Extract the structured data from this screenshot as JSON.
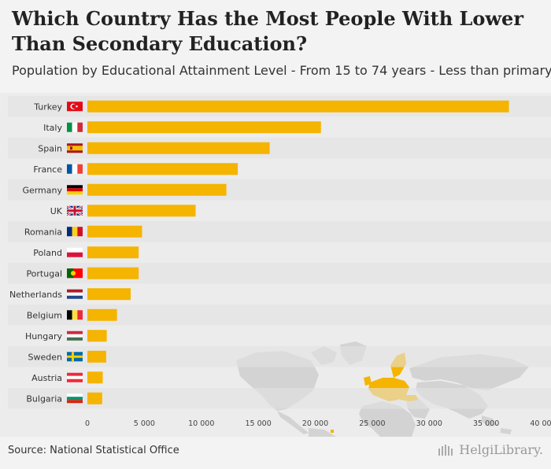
{
  "header": {
    "title": "Which Country Has the Most People With Lower Than Secondary Education?",
    "subtitle": "Population by Educational Attainment Level - From 15 to 74 years - Less than primary, primary and lower secondary education"
  },
  "footer": {
    "source": "Source: National Statistical Office",
    "brand": "HelgiLibrary."
  },
  "colors": {
    "bar": "#f5b400",
    "map_land": "#d3d3d3",
    "map_highlight": "#f5b400",
    "row_band": "#e2e2e2"
  },
  "chart_data": {
    "type": "bar",
    "orientation": "horizontal",
    "title": "Which Country Has the Most People With Lower Than Secondary Education?",
    "categories": [
      "Turkey",
      "Italy",
      "Spain",
      "France",
      "Germany",
      "UK",
      "Romania",
      "Poland",
      "Portugal",
      "Netherlands",
      "Belgium",
      "Hungary",
      "Sweden",
      "Austria",
      "Bulgaria"
    ],
    "flags": [
      "turkey-flag",
      "italy-flag",
      "spain-flag",
      "france-flag",
      "germany-flag",
      "uk-flag",
      "romania-flag",
      "poland-flag",
      "portugal-flag",
      "netherlands-flag",
      "belgium-flag",
      "hungary-flag",
      "sweden-flag",
      "austria-flag",
      "bulgaria-flag"
    ],
    "values": [
      37000,
      20500,
      16000,
      13200,
      12200,
      9500,
      4800,
      4500,
      4500,
      3800,
      2600,
      1700,
      1650,
      1350,
      1300
    ],
    "xlim": [
      0,
      40000
    ],
    "xticks": [
      0,
      5000,
      10000,
      15000,
      20000,
      25000,
      30000,
      35000,
      40000
    ],
    "xtick_labels": [
      "0",
      "5 000",
      "10 000",
      "15 000",
      "20 000",
      "25 000",
      "30 000",
      "35 000",
      "40 000"
    ],
    "xlabel": "",
    "ylabel": ""
  }
}
